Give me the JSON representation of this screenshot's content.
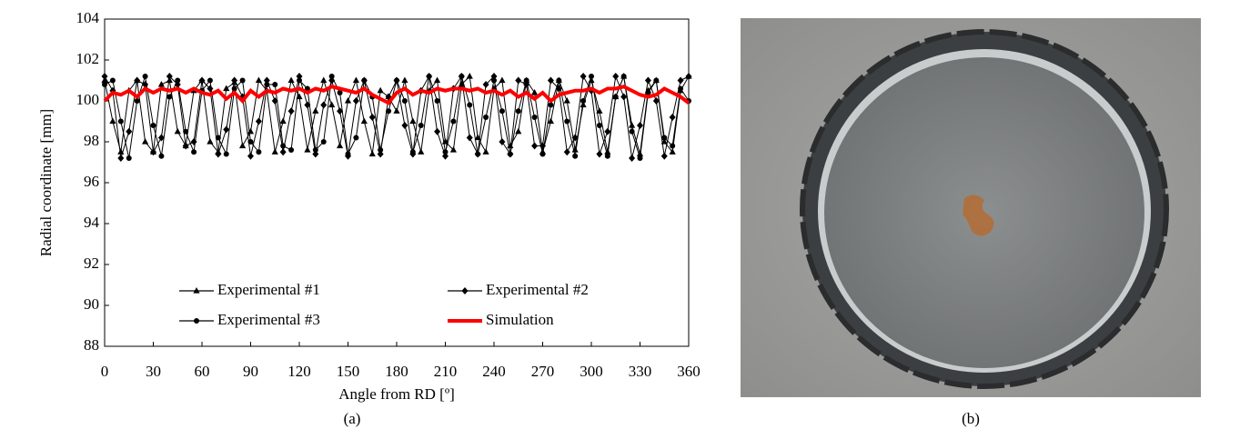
{
  "chart_data": {
    "type": "line",
    "caption": "(a)",
    "x_label": "Angle from RD [º]",
    "y_label": "Radial coordinate [mm]",
    "xlim": [
      0,
      360
    ],
    "ylim": [
      88,
      104
    ],
    "xticks": [
      0,
      30,
      60,
      90,
      120,
      150,
      180,
      210,
      240,
      270,
      300,
      330,
      360
    ],
    "yticks": [
      88,
      90,
      92,
      94,
      96,
      98,
      100,
      102,
      104
    ],
    "legend": "lower-center",
    "x": [
      0,
      5,
      10,
      15,
      20,
      25,
      30,
      35,
      40,
      45,
      50,
      55,
      60,
      65,
      70,
      75,
      80,
      85,
      90,
      95,
      100,
      105,
      110,
      115,
      120,
      125,
      130,
      135,
      140,
      145,
      150,
      155,
      160,
      165,
      170,
      175,
      180,
      185,
      190,
      195,
      200,
      205,
      210,
      215,
      220,
      225,
      230,
      235,
      240,
      245,
      250,
      255,
      260,
      265,
      270,
      275,
      280,
      285,
      290,
      295,
      300,
      305,
      310,
      315,
      320,
      325,
      330,
      335,
      340,
      345,
      350,
      355,
      360
    ],
    "series": [
      {
        "name": "Experimental #1",
        "color": "#000000",
        "marker": "triangle",
        "values": [
          101.0,
          99.0,
          97.5,
          100.5,
          101.0,
          98.0,
          97.5,
          100.8,
          101.0,
          98.5,
          97.8,
          100.5,
          101.0,
          98.0,
          97.5,
          100.6,
          100.9,
          97.8,
          98.5,
          101.0,
          100.5,
          97.5,
          99.0,
          101.0,
          100.2,
          97.6,
          99.5,
          101.0,
          99.8,
          97.8,
          100.0,
          101.0,
          99.0,
          97.4,
          100.5,
          100.2,
          99.5,
          101.0,
          99.0,
          97.5,
          100.5,
          101.0,
          98.0,
          97.6,
          100.8,
          101.2,
          98.2,
          97.5,
          100.6,
          101.0,
          97.8,
          98.5,
          101.0,
          100.4,
          97.5,
          99.0,
          101.0,
          100.0,
          97.6,
          99.8,
          101.0,
          99.5,
          97.5,
          100.2,
          101.2,
          98.8,
          97.4,
          100.5,
          101.0,
          98.0,
          97.5,
          100.5,
          101.2
        ]
      },
      {
        "name": "Experimental #2",
        "color": "#000000",
        "marker": "diamond",
        "values": [
          101.2,
          100.5,
          97.2,
          98.5,
          101.0,
          100.8,
          97.5,
          98.2,
          101.2,
          100.8,
          97.8,
          98.0,
          101.0,
          100.6,
          97.4,
          98.6,
          101.0,
          100.2,
          97.3,
          99.0,
          101.0,
          100.0,
          97.5,
          99.5,
          101.2,
          99.8,
          97.4,
          99.8,
          101.0,
          99.5,
          97.3,
          100.0,
          101.0,
          99.2,
          97.4,
          100.2,
          101.0,
          98.8,
          97.4,
          100.5,
          101.2,
          98.5,
          97.3,
          100.6,
          101.2,
          98.2,
          97.4,
          100.8,
          101.2,
          98.0,
          97.4,
          101.0,
          100.8,
          97.8,
          97.8,
          101.0,
          100.6,
          97.5,
          98.2,
          101.2,
          100.5,
          97.4,
          98.5,
          101.2,
          100.2,
          97.2,
          98.8,
          101.0,
          100.0,
          97.3,
          99.2,
          101.0,
          101.2
        ]
      },
      {
        "name": "Experimental #3",
        "color": "#000000",
        "marker": "circle",
        "values": [
          100.8,
          101.0,
          99.0,
          97.2,
          100.0,
          101.2,
          98.8,
          97.3,
          100.2,
          101.0,
          98.5,
          97.5,
          100.5,
          101.0,
          98.2,
          97.4,
          100.6,
          101.0,
          98.0,
          97.5,
          100.8,
          100.8,
          97.8,
          97.6,
          101.0,
          100.6,
          97.6,
          98.0,
          101.2,
          100.4,
          97.4,
          98.2,
          101.0,
          100.2,
          97.6,
          99.5,
          101.0,
          100.0,
          97.5,
          98.8,
          101.2,
          100.0,
          97.5,
          99.0,
          101.2,
          99.8,
          97.4,
          99.2,
          101.0,
          99.5,
          97.4,
          99.5,
          101.0,
          99.2,
          97.4,
          99.8,
          101.0,
          99.0,
          97.3,
          100.0,
          101.2,
          98.8,
          97.3,
          100.2,
          101.2,
          98.5,
          97.2,
          100.4,
          101.0,
          98.2,
          97.8,
          100.6,
          100.0
        ]
      },
      {
        "name": "Simulation",
        "color": "#ff0000",
        "values": [
          100.0,
          100.4,
          100.3,
          100.5,
          100.2,
          100.6,
          100.4,
          100.6,
          100.5,
          100.6,
          100.4,
          100.6,
          100.4,
          100.3,
          100.5,
          100.1,
          100.4,
          100.0,
          100.5,
          100.2,
          100.5,
          100.4,
          100.6,
          100.5,
          100.6,
          100.4,
          100.6,
          100.5,
          100.7,
          100.6,
          100.5,
          100.4,
          100.6,
          100.3,
          100.1,
          99.9,
          100.4,
          100.6,
          100.3,
          100.5,
          100.4,
          100.6,
          100.5,
          100.6,
          100.6,
          100.5,
          100.6,
          100.4,
          100.5,
          100.3,
          100.5,
          100.2,
          100.4,
          100.1,
          100.4,
          100.0,
          100.3,
          100.4,
          100.5,
          100.5,
          100.6,
          100.4,
          100.6,
          100.6,
          100.7,
          100.5,
          100.3,
          100.2,
          100.3,
          100.6,
          100.4,
          100.2,
          99.9
        ]
      }
    ]
  },
  "photo": {
    "caption": "(b)"
  }
}
